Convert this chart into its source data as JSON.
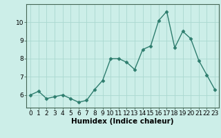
{
  "x": [
    0,
    1,
    2,
    3,
    4,
    5,
    6,
    7,
    8,
    9,
    10,
    11,
    12,
    13,
    14,
    15,
    16,
    17,
    18,
    19,
    20,
    21,
    22,
    23
  ],
  "y": [
    6.0,
    6.2,
    5.8,
    5.9,
    6.0,
    5.8,
    5.6,
    5.7,
    6.3,
    6.8,
    8.0,
    8.0,
    7.8,
    7.4,
    8.5,
    8.7,
    10.1,
    10.6,
    8.6,
    9.5,
    9.1,
    7.9,
    7.1,
    6.3
  ],
  "line_color": "#2e7d6e",
  "marker": "D",
  "marker_size": 2.5,
  "bg_color": "#cceee8",
  "grid_color": "#aad8d0",
  "xlabel": "Humidex (Indice chaleur)",
  "ylim": [
    5.3,
    11.0
  ],
  "xlim": [
    -0.5,
    23.5
  ],
  "yticks": [
    6,
    7,
    8,
    9,
    10
  ],
  "xticks": [
    0,
    1,
    2,
    3,
    4,
    5,
    6,
    7,
    8,
    9,
    10,
    11,
    12,
    13,
    14,
    15,
    16,
    17,
    18,
    19,
    20,
    21,
    22,
    23
  ],
  "xtick_labels": [
    "0",
    "1",
    "2",
    "3",
    "4",
    "5",
    "6",
    "7",
    "8",
    "9",
    "10",
    "11",
    "12",
    "13",
    "14",
    "15",
    "16",
    "17",
    "18",
    "19",
    "20",
    "21",
    "22",
    "23"
  ],
  "tick_fontsize": 6.5,
  "xlabel_fontsize": 7.5,
  "linewidth": 1.0
}
